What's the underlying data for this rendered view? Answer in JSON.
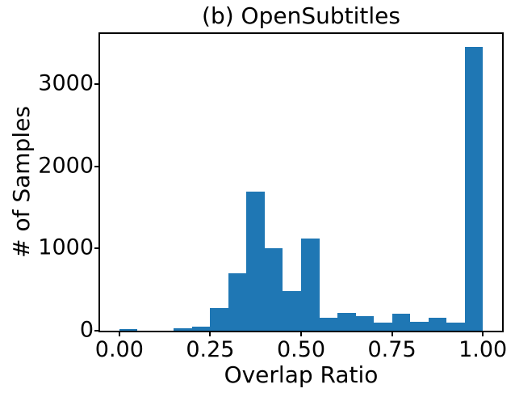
{
  "chart_data": {
    "type": "bar",
    "subtype": "histogram",
    "title": "(b) OpenSubtitles",
    "xlabel": "Overlap Ratio",
    "ylabel": "# of Samples",
    "bar_color": "#1f77b4",
    "axis_color": "#000000",
    "grid": false,
    "legend": null,
    "bin_edges": [
      0.0,
      0.05,
      0.1,
      0.15,
      0.2,
      0.25,
      0.3,
      0.35,
      0.4,
      0.45,
      0.5,
      0.55,
      0.6,
      0.65,
      0.7,
      0.75,
      0.8,
      0.85,
      0.9,
      0.95,
      1.0
    ],
    "counts": [
      15,
      0,
      0,
      25,
      45,
      280,
      700,
      1690,
      1000,
      480,
      1120,
      155,
      215,
      175,
      100,
      205,
      110,
      160,
      100,
      3455
    ],
    "xticks": {
      "values": [
        0.0,
        0.25,
        0.5,
        0.75,
        1.0
      ],
      "labels": [
        "0.00",
        "0.25",
        "0.50",
        "0.75",
        "1.00"
      ]
    },
    "yticks": {
      "values": [
        0,
        1000,
        2000,
        3000
      ],
      "labels": [
        "0",
        "1000",
        "2000",
        "3000"
      ]
    },
    "xlim": [
      -0.053,
      1.053
    ],
    "ylim": [
      0,
      3610
    ]
  }
}
